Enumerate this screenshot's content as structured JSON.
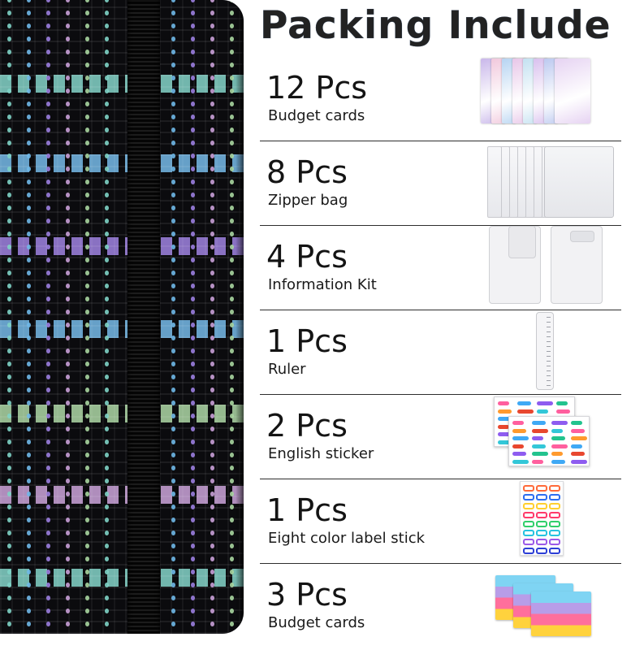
{
  "title": "Packing Include",
  "items": [
    {
      "qty": "12 Pcs",
      "name": "Budget cards"
    },
    {
      "qty": "8 Pcs",
      "name": "Zipper bag"
    },
    {
      "qty": "4 Pcs",
      "name": "Information Kit"
    },
    {
      "qty": "1 Pcs",
      "name": "Ruler"
    },
    {
      "qty": "2 Pcs",
      "name": "English sticker"
    },
    {
      "qty": "1 Pcs",
      "name": "Eight color label stick"
    },
    {
      "qty": "3 Pcs",
      "name": "Budget cards"
    }
  ],
  "colors": {
    "binder_base": "#0b0b0e",
    "zipper": "#050505",
    "iridescent": [
      "#7fd3c6",
      "#6fb8e8",
      "#9b7ee0",
      "#c9a0d8",
      "#a9d6a0"
    ],
    "rule": "#2e2e2e"
  }
}
